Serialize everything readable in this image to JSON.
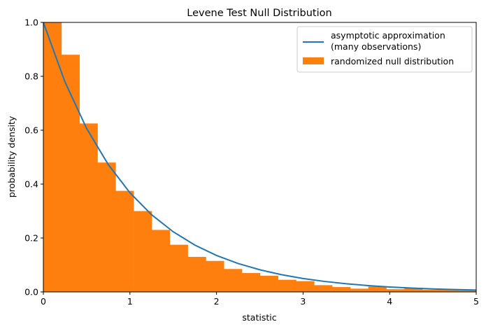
{
  "chart_data": {
    "type": "bar",
    "title": "Levene Test Null Distribution",
    "xlabel": "statistic",
    "ylabel": "probability density",
    "xlim": [
      0,
      5
    ],
    "ylim": [
      0,
      1.0
    ],
    "x_ticks": [
      0,
      1,
      2,
      3,
      4,
      5
    ],
    "x_tick_labels": [
      "0",
      "1",
      "2",
      "3",
      "4",
      "5"
    ],
    "y_ticks": [
      0,
      0.2,
      0.4,
      0.6,
      0.8,
      1.0
    ],
    "y_tick_labels": [
      "0.0",
      "0.2",
      "0.4",
      "0.6",
      "0.8",
      "1.0"
    ],
    "grid": false,
    "legend_position": "top-right",
    "histogram": {
      "name": "randomized null distribution",
      "color": "#ff7f0e",
      "bin_width": 0.2085,
      "bin_starts": [
        0.0,
        0.2085,
        0.417,
        0.6255,
        0.834,
        1.0425,
        1.251,
        1.4595,
        1.668,
        1.8765,
        2.085,
        2.2935,
        2.502,
        2.7105,
        2.919,
        3.1275,
        3.336,
        3.5445,
        3.753,
        3.9615,
        4.17,
        4.3785,
        4.587,
        4.7955
      ],
      "values": [
        1.0,
        0.88,
        0.625,
        0.48,
        0.375,
        0.3,
        0.23,
        0.175,
        0.13,
        0.115,
        0.085,
        0.07,
        0.06,
        0.045,
        0.04,
        0.025,
        0.018,
        0.012,
        0.02,
        0.01,
        0.015,
        0.008,
        0.008,
        0.006
      ]
    },
    "curve": {
      "name": "asymptotic approximation\n(many observations)",
      "color": "#1f77b4",
      "function": "exp(-x)",
      "x": [
        0,
        0.25,
        0.5,
        0.75,
        1,
        1.25,
        1.5,
        1.75,
        2,
        2.25,
        2.5,
        2.75,
        3,
        3.25,
        3.5,
        3.75,
        4,
        4.25,
        4.5,
        4.75,
        5
      ],
      "y": [
        1.0,
        0.7788,
        0.6065,
        0.4724,
        0.3679,
        0.2865,
        0.2231,
        0.1738,
        0.1353,
        0.1054,
        0.0821,
        0.0639,
        0.0498,
        0.0388,
        0.0302,
        0.0235,
        0.0183,
        0.0143,
        0.0111,
        0.0087,
        0.0067
      ]
    },
    "legend": {
      "curve_label_line1": "asymptotic approximation",
      "curve_label_line2": "(many observations)",
      "bar_label": "randomized null distribution"
    }
  }
}
